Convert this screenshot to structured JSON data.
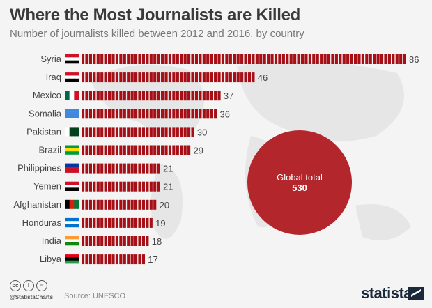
{
  "chart_data": {
    "type": "bar",
    "orientation": "horizontal",
    "title": "Where the Most Journalists are Killed",
    "subtitle": "Number of journalists killed between 2012 and 2016, by country",
    "categories": [
      "Syria",
      "Iraq",
      "Mexico",
      "Somalia",
      "Pakistan",
      "Brazil",
      "Philippines",
      "Yemen",
      "Afghanistan",
      "Honduras",
      "India",
      "Libya"
    ],
    "values": [
      86,
      46,
      37,
      36,
      30,
      29,
      21,
      21,
      20,
      19,
      18,
      17
    ],
    "bar_color": "#a50f15",
    "grid": false,
    "annotation": {
      "label": "Global total",
      "value": "530",
      "color": "#b3262c"
    }
  },
  "footer": {
    "handle": "@StatistaCharts",
    "source": "Source: UNESCO",
    "logo": "statista"
  }
}
